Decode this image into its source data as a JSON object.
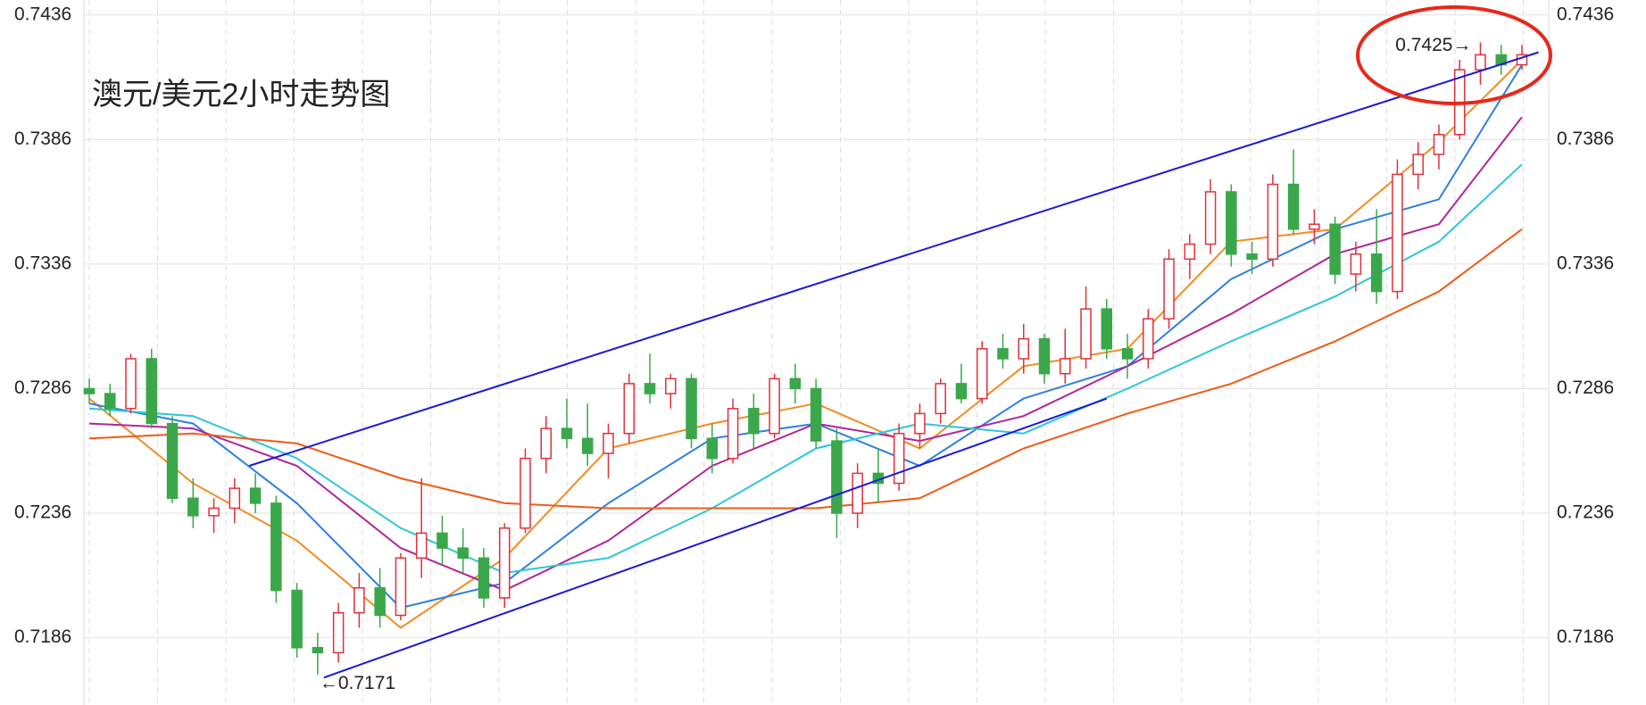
{
  "chart_data": {
    "type": "candlestick",
    "title": "澳元/美元2小时走势图",
    "title_color": "#e8381a",
    "up_color": "#e0303a",
    "down_color": "#3aa74b",
    "ylim": [
      0.7159,
      0.7442
    ],
    "yticks": [
      0.7186,
      0.7236,
      0.7286,
      0.7336,
      0.7386,
      0.7436
    ],
    "xlim": [
      0,
      69
    ],
    "grid": true,
    "open": [
      0.7286,
      0.7284,
      0.7278,
      0.7298,
      0.7272,
      0.7242,
      0.7235,
      0.7238,
      0.7246,
      0.724,
      0.7205,
      0.7182,
      0.718,
      0.7196,
      0.7206,
      0.7195,
      0.7218,
      0.7228,
      0.7222,
      0.7218,
      0.7202,
      0.723,
      0.7258,
      0.727,
      0.7266,
      0.726,
      0.7268,
      0.7288,
      0.7284,
      0.729,
      0.7266,
      0.7258,
      0.7278,
      0.7268,
      0.729,
      0.7286,
      0.7265,
      0.7236,
      0.7252,
      0.7248,
      0.7268,
      0.7276,
      0.7288,
      0.7282,
      0.7302,
      0.7298,
      0.7306,
      0.7292,
      0.7298,
      0.7318,
      0.7302,
      0.7298,
      0.7314,
      0.7338,
      0.7344,
      0.7365,
      0.734,
      0.7338,
      0.7368,
      0.735,
      0.7352,
      0.7332,
      0.734,
      0.7325,
      0.7372,
      0.738,
      0.7388,
      0.7414,
      0.742,
      0.7416
    ],
    "high": [
      0.729,
      0.7288,
      0.73,
      0.7302,
      0.7275,
      0.725,
      0.7242,
      0.725,
      0.7252,
      0.7243,
      0.7208,
      0.7188,
      0.72,
      0.7212,
      0.7214,
      0.722,
      0.725,
      0.7235,
      0.723,
      0.7222,
      0.7232,
      0.7262,
      0.7275,
      0.7282,
      0.728,
      0.7272,
      0.7292,
      0.73,
      0.7292,
      0.7292,
      0.7272,
      0.7282,
      0.7284,
      0.7292,
      0.7296,
      0.729,
      0.727,
      0.7256,
      0.7262,
      0.7272,
      0.728,
      0.729,
      0.7296,
      0.7305,
      0.7308,
      0.7312,
      0.7308,
      0.731,
      0.7327,
      0.7322,
      0.7308,
      0.7318,
      0.7342,
      0.7348,
      0.737,
      0.7368,
      0.7345,
      0.7372,
      0.7382,
      0.7358,
      0.7355,
      0.7345,
      0.7358,
      0.7378,
      0.7385,
      0.7392,
      0.7418,
      0.7425,
      0.7424,
      0.7424
    ],
    "low": [
      0.728,
      0.7275,
      0.7276,
      0.727,
      0.724,
      0.723,
      0.7228,
      0.7232,
      0.7236,
      0.72,
      0.7178,
      0.7171,
      0.7176,
      0.719,
      0.719,
      0.7193,
      0.721,
      0.7215,
      0.7212,
      0.7198,
      0.7198,
      0.7228,
      0.7252,
      0.7262,
      0.7255,
      0.725,
      0.7264,
      0.728,
      0.7278,
      0.7262,
      0.7252,
      0.7256,
      0.7262,
      0.7266,
      0.728,
      0.7262,
      0.7226,
      0.723,
      0.724,
      0.7245,
      0.7262,
      0.7272,
      0.728,
      0.728,
      0.7294,
      0.7292,
      0.7288,
      0.7288,
      0.7294,
      0.7298,
      0.729,
      0.7294,
      0.731,
      0.733,
      0.734,
      0.7335,
      0.7332,
      0.7335,
      0.7348,
      0.7344,
      0.7328,
      0.7325,
      0.732,
      0.7322,
      0.7366,
      0.7374,
      0.7386,
      0.7408,
      0.7412,
      0.7414
    ],
    "close": [
      0.7284,
      0.7278,
      0.7298,
      0.7272,
      0.7242,
      0.7235,
      0.7238,
      0.7246,
      0.724,
      0.7205,
      0.7182,
      0.718,
      0.7196,
      0.7206,
      0.7195,
      0.7218,
      0.7228,
      0.7222,
      0.7218,
      0.7202,
      0.723,
      0.7258,
      0.727,
      0.7266,
      0.726,
      0.7268,
      0.7288,
      0.7284,
      0.729,
      0.7266,
      0.7258,
      0.7278,
      0.7268,
      0.729,
      0.7286,
      0.7265,
      0.7236,
      0.7252,
      0.7248,
      0.7268,
      0.7276,
      0.7288,
      0.7282,
      0.7302,
      0.7298,
      0.7306,
      0.7292,
      0.7298,
      0.7318,
      0.7302,
      0.7298,
      0.7314,
      0.7338,
      0.7344,
      0.7365,
      0.734,
      0.7338,
      0.7368,
      0.735,
      0.7352,
      0.7332,
      0.734,
      0.7325,
      0.7372,
      0.738,
      0.7388,
      0.7414,
      0.742,
      0.7416,
      0.742
    ],
    "series": [
      {
        "color": "#f28c1e",
        "x": [
          0,
          5,
          10,
          15,
          20,
          25,
          30,
          35,
          40,
          45,
          50,
          55,
          60,
          65,
          69
        ],
        "values": [
          0.7282,
          0.7248,
          0.7225,
          0.719,
          0.7218,
          0.7262,
          0.7272,
          0.728,
          0.7262,
          0.7295,
          0.7302,
          0.7345,
          0.735,
          0.7385,
          0.7418
        ]
      },
      {
        "color": "#2f7fe0",
        "x": [
          0,
          5,
          10,
          15,
          20,
          25,
          30,
          35,
          40,
          45,
          50,
          55,
          60,
          65,
          69
        ],
        "values": [
          0.728,
          0.7272,
          0.724,
          0.7198,
          0.7208,
          0.724,
          0.7266,
          0.7272,
          0.7255,
          0.7282,
          0.7295,
          0.733,
          0.735,
          0.7362,
          0.7416
        ]
      },
      {
        "color": "#b0259a",
        "x": [
          0,
          5,
          10,
          15,
          20,
          25,
          30,
          35,
          40,
          45,
          50,
          55,
          60,
          65,
          69
        ],
        "values": [
          0.7272,
          0.727,
          0.7255,
          0.7222,
          0.7205,
          0.7225,
          0.7255,
          0.7272,
          0.7265,
          0.7275,
          0.7295,
          0.7316,
          0.734,
          0.7352,
          0.7395
        ]
      },
      {
        "color": "#2cc6dc",
        "x": [
          0,
          5,
          10,
          15,
          20,
          25,
          30,
          35,
          40,
          45,
          50,
          55,
          60,
          65,
          69
        ],
        "values": [
          0.7278,
          0.7275,
          0.7258,
          0.723,
          0.7212,
          0.7218,
          0.7238,
          0.7262,
          0.7272,
          0.7268,
          0.7286,
          0.7305,
          0.7323,
          0.7345,
          0.7376
        ]
      },
      {
        "color": "#f05a14",
        "x": [
          0,
          5,
          10,
          15,
          20,
          25,
          30,
          35,
          40,
          45,
          50,
          55,
          60,
          65,
          69
        ],
        "values": [
          0.7266,
          0.7268,
          0.7264,
          0.725,
          0.724,
          0.7238,
          0.7238,
          0.7238,
          0.7242,
          0.7262,
          0.7276,
          0.7288,
          0.7305,
          0.7325,
          0.735
        ]
      }
    ],
    "trendlines": [
      {
        "color": "#1a1ad8",
        "x": [
          7.7,
          69.8
        ],
        "values": [
          0.7255,
          0.7421
        ]
      },
      {
        "color": "#1a1ad8",
        "x": [
          11.3,
          49
        ],
        "values": [
          0.717,
          0.7282
        ]
      }
    ],
    "annotations": [
      {
        "text": "0.7425→",
        "x": 67,
        "value": 0.7425,
        "anchor": "end"
      },
      {
        "text": "←0.7171",
        "x": 11,
        "value": 0.7171,
        "anchor": "start"
      }
    ]
  }
}
